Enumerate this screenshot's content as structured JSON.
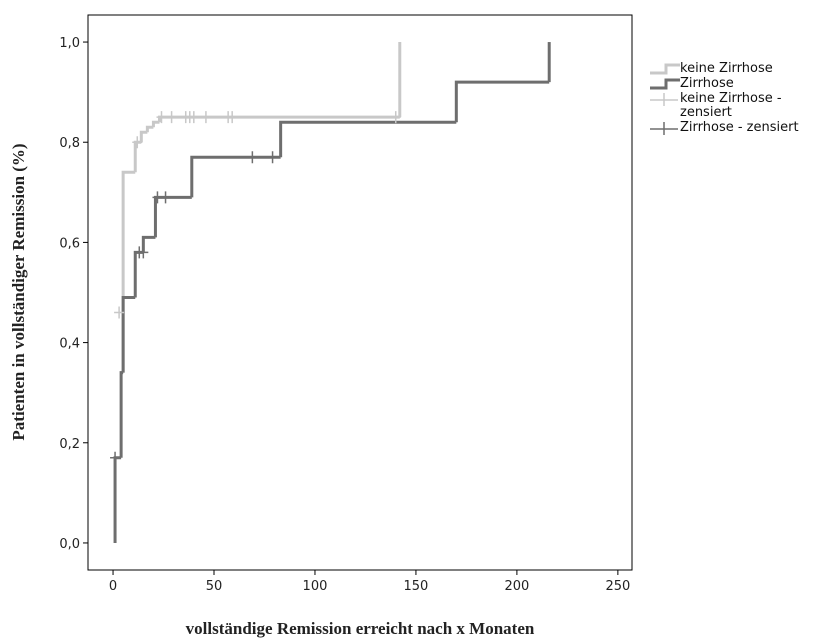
{
  "chart_data": {
    "type": "line",
    "x_label": "vollständige Remission erreicht nach x Monaten",
    "y_label": "Patienten in vollständiger Remission (%)",
    "xlim": [
      -12.4,
      257
    ],
    "ylim": [
      -0.054,
      1.054
    ],
    "xticks": [
      0,
      50,
      100,
      150,
      200,
      250
    ],
    "yticks": [
      {
        "value": 0,
        "label": "0,0"
      },
      {
        "value": 0.2,
        "label": "0,2"
      },
      {
        "value": 0.4,
        "label": "0,4"
      },
      {
        "value": 0.6,
        "label": "0,6"
      },
      {
        "value": 0.8,
        "label": "0,8"
      },
      {
        "value": 1,
        "label": "1,0"
      }
    ],
    "series": [
      {
        "name": "keine Zirrhose",
        "color": "#c8c8c8",
        "style": "step",
        "x": [
          4,
          5,
          11,
          14,
          17,
          20,
          23,
          142
        ],
        "values": [
          0.34,
          0.74,
          0.8,
          0.82,
          0.83,
          0.84,
          0.85,
          1.0
        ]
      },
      {
        "name": "Zirrhose",
        "color": "#6e6e6e",
        "style": "step",
        "x": [
          1,
          1,
          4,
          5,
          11,
          15,
          21,
          39,
          83,
          170,
          216
        ],
        "values": [
          0,
          0.17,
          0.34,
          0.49,
          0.58,
          0.61,
          0.69,
          0.77,
          0.84,
          0.92,
          1.0
        ]
      },
      {
        "name": "keine Zirrhose - zensiert",
        "color": "#c8c8c8",
        "style": "marker",
        "x": [
          3,
          12,
          24,
          29,
          36,
          38,
          40,
          46,
          57,
          59,
          140
        ],
        "values": [
          0.46,
          0.8,
          0.85,
          0.85,
          0.85,
          0.85,
          0.85,
          0.85,
          0.85,
          0.85,
          0.85
        ]
      },
      {
        "name": "Zirrhose - zensiert",
        "color": "#6e6e6e",
        "style": "marker",
        "x": [
          1,
          13,
          15,
          22,
          26,
          69,
          79
        ],
        "values": [
          0.17,
          0.58,
          0.58,
          0.69,
          0.69,
          0.77,
          0.77
        ]
      }
    ]
  }
}
